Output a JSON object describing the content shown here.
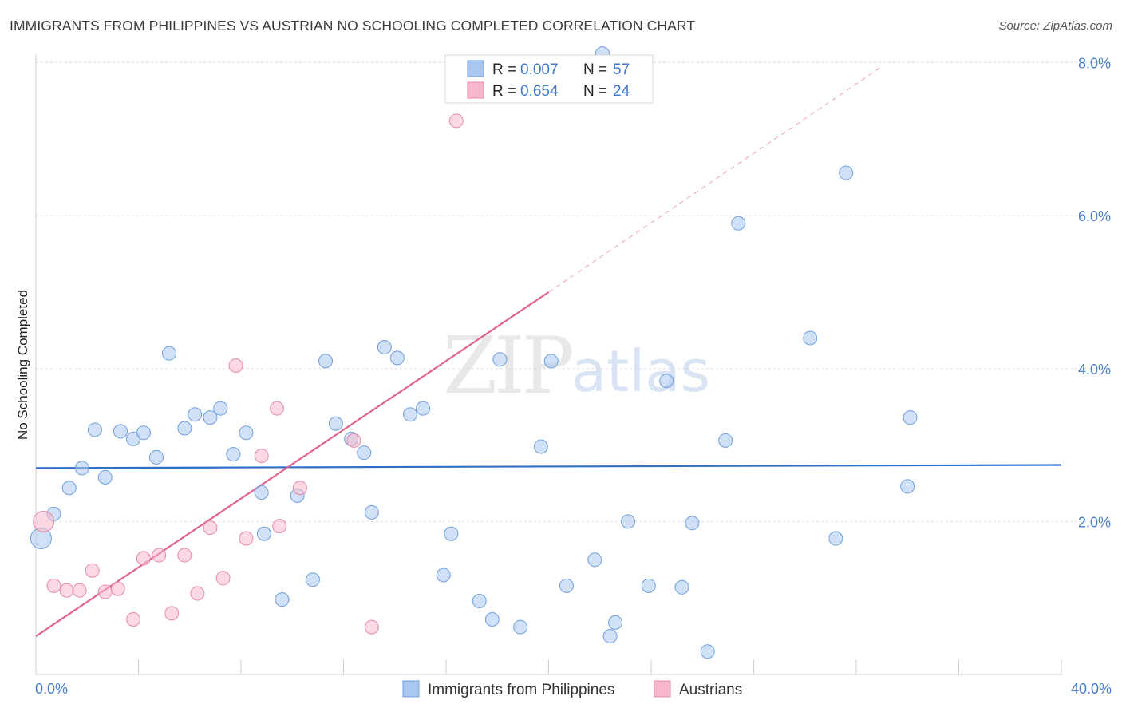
{
  "title": "IMMIGRANTS FROM PHILIPPINES VS AUSTRIAN NO SCHOOLING COMPLETED CORRELATION CHART",
  "source": "Source: ZipAtlas.com",
  "watermark": {
    "zip": "ZIP",
    "atlas": "atlas"
  },
  "legend": {
    "rows": [
      {
        "r_label": "R =",
        "r_value": "0.007",
        "n_label": "N =",
        "n_value": "57",
        "color": "#a9c8f0"
      },
      {
        "r_label": "R =",
        "r_value": "0.654",
        "n_label": "N =",
        "n_value": "24",
        "color": "#f7b8cb"
      }
    ]
  },
  "bottom_legend": [
    {
      "label": "Immigrants from Philippines",
      "color": "#a9c8f0"
    },
    {
      "label": "Austrians",
      "color": "#f7b8cb"
    }
  ],
  "chart_data": {
    "type": "scatter",
    "title": "IMMIGRANTS FROM PHILIPPINES VS AUSTRIAN NO SCHOOLING COMPLETED CORRELATION CHART",
    "xlabel": "",
    "ylabel": "No Schooling Completed",
    "xlim": [
      0,
      40
    ],
    "ylim": [
      0,
      8.4
    ],
    "x_tick_labels": [
      "0.0%",
      "40.0%"
    ],
    "y_ticks": [
      {
        "value": 2,
        "label": "2.0%"
      },
      {
        "value": 4,
        "label": "4.0%"
      },
      {
        "value": 6,
        "label": "6.0%"
      },
      {
        "value": 8,
        "label": "8.0%"
      }
    ],
    "grid": true,
    "legend_placement": "top-center",
    "series": [
      {
        "name": "Immigrants from Philippines",
        "color": "#a9c8f0",
        "stroke": "#6f9fdc",
        "trend": {
          "x0": 0,
          "y0": 2.7,
          "x1": 40,
          "y1": 2.74,
          "color": "#2f6fc9"
        },
        "points": [
          [
            0.2,
            1.78
          ],
          [
            0.7,
            2.1
          ],
          [
            1.3,
            2.44
          ],
          [
            1.8,
            2.7
          ],
          [
            2.3,
            3.2
          ],
          [
            2.7,
            2.58
          ],
          [
            3.3,
            3.18
          ],
          [
            3.8,
            3.08
          ],
          [
            4.2,
            3.16
          ],
          [
            4.7,
            2.84
          ],
          [
            5.2,
            4.2
          ],
          [
            5.8,
            3.22
          ],
          [
            6.2,
            3.4
          ],
          [
            6.8,
            3.36
          ],
          [
            7.2,
            3.48
          ],
          [
            7.7,
            2.88
          ],
          [
            8.2,
            3.16
          ],
          [
            8.8,
            2.38
          ],
          [
            8.9,
            1.84
          ],
          [
            9.6,
            0.98
          ],
          [
            10.2,
            2.34
          ],
          [
            10.8,
            1.24
          ],
          [
            11.3,
            4.1
          ],
          [
            11.7,
            3.28
          ],
          [
            12.3,
            3.08
          ],
          [
            12.8,
            2.9
          ],
          [
            13.1,
            2.12
          ],
          [
            13.6,
            4.28
          ],
          [
            14.1,
            4.14
          ],
          [
            14.6,
            3.4
          ],
          [
            15.1,
            3.48
          ],
          [
            15.9,
            1.3
          ],
          [
            16.2,
            1.84
          ],
          [
            17.3,
            0.96
          ],
          [
            17.8,
            0.72
          ],
          [
            18.1,
            4.12
          ],
          [
            18.9,
            0.62
          ],
          [
            19.7,
            2.98
          ],
          [
            20.1,
            4.1
          ],
          [
            20.7,
            1.16
          ],
          [
            21.8,
            1.5
          ],
          [
            22.4,
            0.5
          ],
          [
            22.6,
            0.68
          ],
          [
            23.1,
            2.0
          ],
          [
            23.9,
            1.16
          ],
          [
            24.6,
            3.84
          ],
          [
            25.2,
            1.14
          ],
          [
            25.6,
            1.98
          ],
          [
            26.2,
            0.3
          ],
          [
            26.9,
            3.06
          ],
          [
            27.4,
            5.9
          ],
          [
            30.2,
            4.4
          ],
          [
            31.2,
            1.78
          ],
          [
            31.6,
            6.56
          ],
          [
            34.0,
            2.46
          ],
          [
            34.1,
            3.36
          ],
          [
            22.1,
            8.12
          ]
        ],
        "large_points": [
          [
            0.2,
            1.78
          ]
        ]
      },
      {
        "name": "Austrians",
        "color": "#f7b8cb",
        "stroke": "#e58aa8",
        "trend": {
          "x0": 0,
          "y0": 0.5,
          "x1": 20.0,
          "y1": 5.0,
          "color": "#e0638c",
          "dashed_to": {
            "x": 33.0,
            "y": 7.95
          }
        },
        "points": [
          [
            0.3,
            2.0
          ],
          [
            0.7,
            1.16
          ],
          [
            1.2,
            1.1
          ],
          [
            1.7,
            1.1
          ],
          [
            2.2,
            1.36
          ],
          [
            2.7,
            1.08
          ],
          [
            3.2,
            1.12
          ],
          [
            3.8,
            0.72
          ],
          [
            4.2,
            1.52
          ],
          [
            4.8,
            1.56
          ],
          [
            5.3,
            0.8
          ],
          [
            5.8,
            1.56
          ],
          [
            6.3,
            1.06
          ],
          [
            6.8,
            1.92
          ],
          [
            7.3,
            1.26
          ],
          [
            7.8,
            4.04
          ],
          [
            8.2,
            1.78
          ],
          [
            8.8,
            2.86
          ],
          [
            9.4,
            3.48
          ],
          [
            9.5,
            1.94
          ],
          [
            10.3,
            2.44
          ],
          [
            12.4,
            3.06
          ],
          [
            13.1,
            0.62
          ],
          [
            16.4,
            7.24
          ]
        ],
        "large_points": [
          [
            0.3,
            2.0
          ]
        ]
      }
    ]
  }
}
